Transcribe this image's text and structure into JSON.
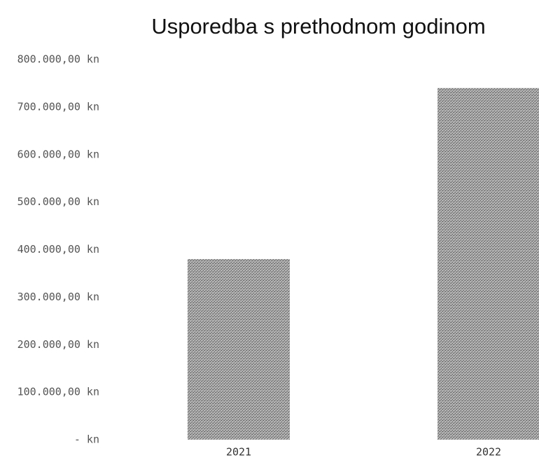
{
  "chart_data": {
    "type": "bar",
    "title": "Usporedba s prethodnom godinom",
    "categories": [
      "2021",
      "2022"
    ],
    "values": [
      380000,
      740000
    ],
    "color": "#9c9c9c",
    "ylim": [
      0,
      800000
    ],
    "yticks": [
      {
        "value": 0,
        "label": "-  kn"
      },
      {
        "value": 100000,
        "label": "100.000,00 kn"
      },
      {
        "value": 200000,
        "label": "200.000,00 kn"
      },
      {
        "value": 300000,
        "label": "300.000,00 kn"
      },
      {
        "value": 400000,
        "label": "400.000,00 kn"
      },
      {
        "value": 500000,
        "label": "500.000,00 kn"
      },
      {
        "value": 600000,
        "label": "600.000,00 kn"
      },
      {
        "value": 700000,
        "label": "700.000,00 kn"
      },
      {
        "value": 800000,
        "label": "800.000,00 kn"
      }
    ],
    "grid": false
  }
}
